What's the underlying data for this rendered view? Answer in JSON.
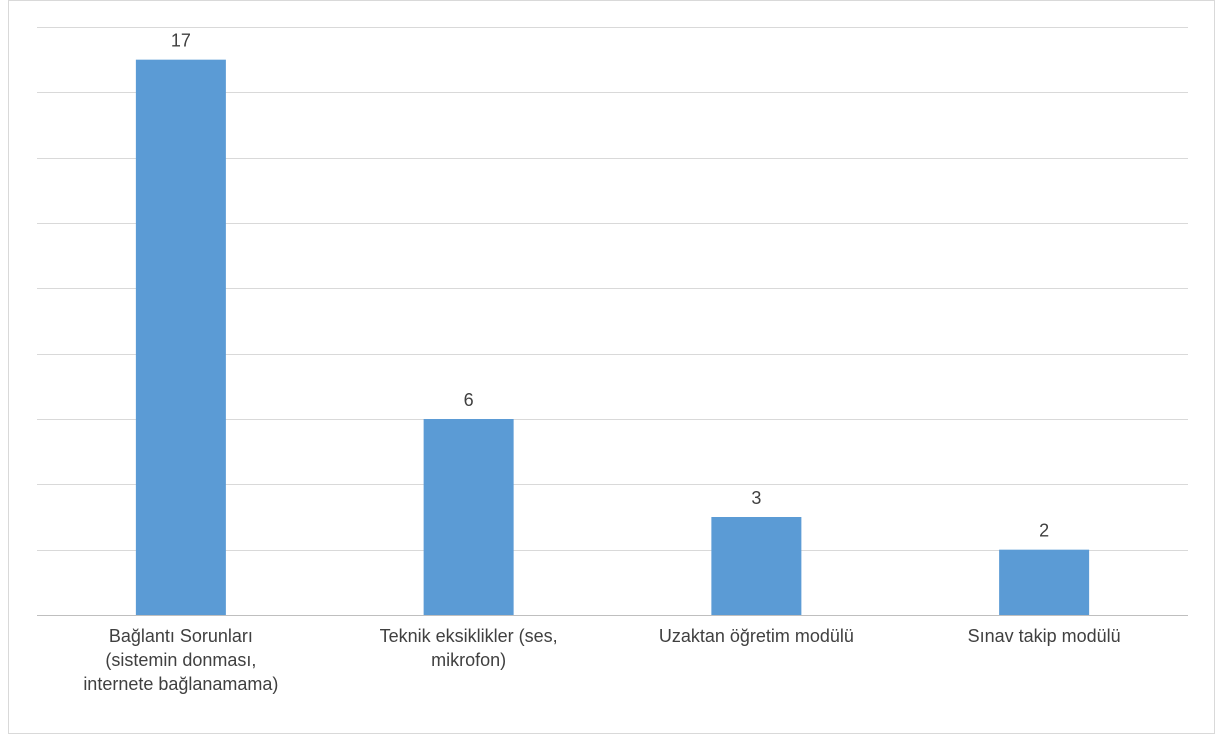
{
  "chart_data": {
    "type": "bar",
    "categories": [
      "Bağlantı Sorunları (sistemin donması, internete bağlanamama)",
      "Teknik eksiklikler (ses, mikrofon)",
      "Uzaktan öğretim modülü",
      "Sınav takip modülü"
    ],
    "category_lines": [
      [
        "Bağlantı Sorunları",
        "(sistemin donması,",
        "internete bağlanamama)"
      ],
      [
        "Teknik eksiklikler (ses,",
        "mikrofon)"
      ],
      [
        "Uzaktan öğretim modülü"
      ],
      [
        "Sınav takip modülü"
      ]
    ],
    "values": [
      17,
      6,
      3,
      2
    ],
    "ylim": [
      0,
      18
    ],
    "grid": true,
    "colors": {
      "bar": "#5b9bd5",
      "grid": "#d9d9d9",
      "axis": "#bfbfbf"
    }
  }
}
